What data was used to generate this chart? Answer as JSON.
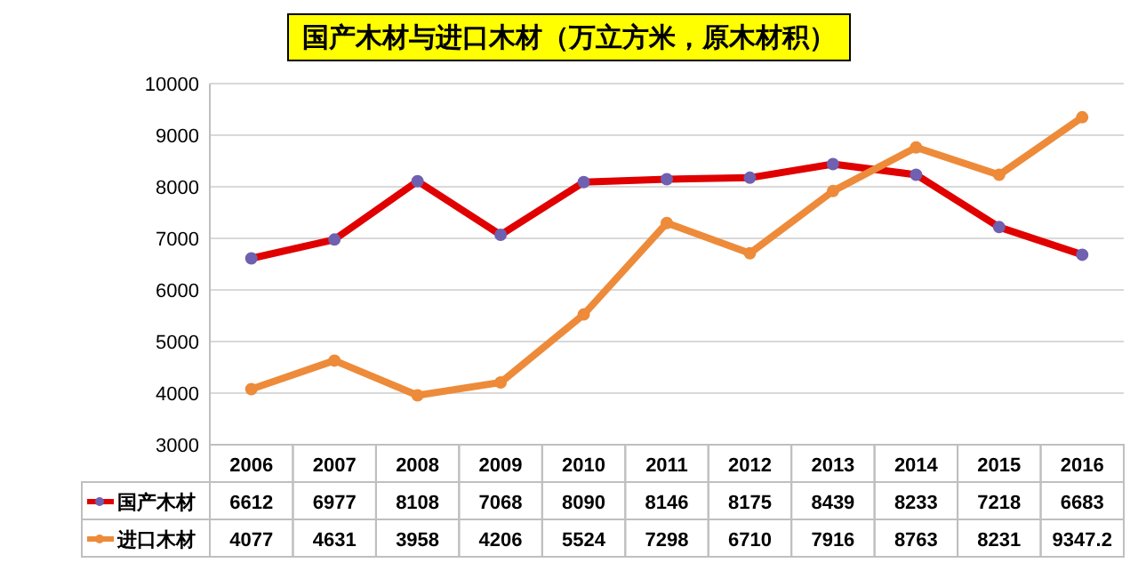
{
  "chart_data": {
    "type": "line",
    "title": "国产木材与进口木材（万立方米，原木材积）",
    "categories": [
      "2006",
      "2007",
      "2008",
      "2009",
      "2010",
      "2011",
      "2012",
      "2013",
      "2014",
      "2015",
      "2016"
    ],
    "series": [
      {
        "name": "国产木材",
        "color": "#e00000",
        "values": [
          6612,
          6977,
          8108,
          7068,
          8090,
          8146,
          8175,
          8439,
          8233,
          7218,
          6683
        ]
      },
      {
        "name": "进口木材",
        "color": "#ed8b3a",
        "values": [
          4077,
          4631,
          3958,
          4206,
          5524,
          7298,
          6710,
          7916,
          8763,
          8231,
          9347.2
        ]
      }
    ],
    "ylim": [
      3000,
      10000
    ],
    "yticks": [
      3000,
      4000,
      5000,
      6000,
      7000,
      8000,
      9000,
      10000
    ],
    "grid": "y",
    "legend": "bottom",
    "marker": "circle",
    "line_style": "solid",
    "data_labels": true
  }
}
